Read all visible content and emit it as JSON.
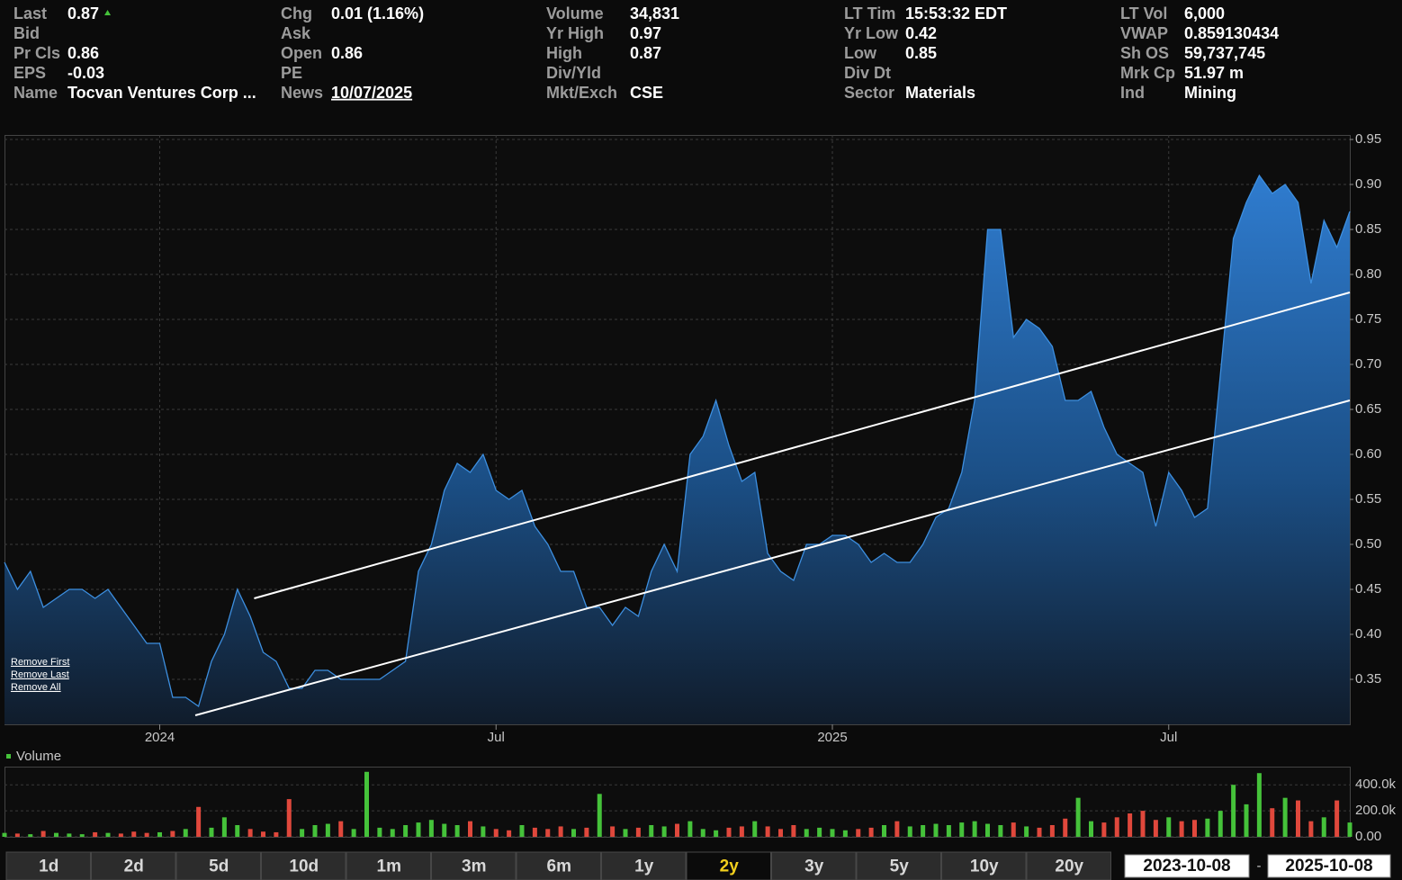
{
  "quote": {
    "columns": [
      [
        {
          "label": "Last",
          "value": "0.87",
          "trend": "up"
        },
        {
          "label": "Bid"
        },
        {
          "label": "Pr Cls",
          "value": "0.86"
        },
        {
          "label": "EPS",
          "value": "-0.03"
        },
        {
          "label": "Name",
          "value": "Tocvan Ventures Corp ..."
        }
      ],
      [
        {
          "label": "Chg",
          "value": "0.01 (1.16%)",
          "color": "#45c23a"
        },
        {
          "label": "Ask"
        },
        {
          "label": "Open",
          "value": "0.86"
        },
        {
          "label": "PE"
        },
        {
          "label": "News",
          "value": "10/07/2025",
          "underline": true
        }
      ],
      [
        {
          "label": "Volume",
          "value": "34,831"
        },
        {
          "label": "Yr High",
          "value": "0.97"
        },
        {
          "label": "High",
          "value": "0.87"
        },
        {
          "label": "Div/Yld"
        },
        {
          "label": "Mkt/Exch",
          "value": "CSE"
        }
      ],
      [
        {
          "label": "LT Tim",
          "value": "15:53:32 EDT"
        },
        {
          "label": "Yr Low",
          "value": "0.42"
        },
        {
          "label": "Low",
          "value": "0.85"
        },
        {
          "label": "Div Dt"
        },
        {
          "label": "Sector",
          "value": "Materials"
        }
      ],
      [
        {
          "label": "LT Vol",
          "value": "6,000"
        },
        {
          "label": "VWAP",
          "value": "0.859130434"
        },
        {
          "label": "Sh OS",
          "value": "59,737,745"
        },
        {
          "label": "Mrk Cp",
          "value": "51.97 m"
        },
        {
          "label": "Ind",
          "value": "Mining"
        }
      ]
    ]
  },
  "chart_data": [
    {
      "type": "area",
      "color": "#3d8fe0",
      "categories": [
        null,
        null,
        null,
        null,
        null,
        null,
        null,
        null,
        null,
        null,
        null,
        null,
        "2024",
        null,
        null,
        null,
        null,
        null,
        null,
        null,
        null,
        null,
        null,
        null,
        null,
        null,
        null,
        null,
        null,
        null,
        null,
        null,
        null,
        null,
        null,
        null,
        null,
        null,
        "Jul",
        null,
        null,
        null,
        null,
        null,
        null,
        null,
        null,
        null,
        null,
        null,
        null,
        null,
        null,
        null,
        null,
        null,
        null,
        null,
        null,
        null,
        null,
        null,
        null,
        null,
        "2025",
        null,
        null,
        null,
        null,
        null,
        null,
        null,
        null,
        null,
        null,
        null,
        null,
        null,
        null,
        null,
        null,
        null,
        null,
        null,
        null,
        null,
        null,
        null,
        null,
        null,
        "Jul",
        null,
        null,
        null,
        null,
        null,
        null,
        null,
        null,
        null,
        null,
        null,
        null,
        null,
        null
      ],
      "values": [
        0.48,
        0.45,
        0.47,
        0.43,
        0.44,
        0.45,
        0.45,
        0.44,
        0.45,
        0.43,
        0.41,
        0.39,
        0.39,
        0.33,
        0.33,
        0.32,
        0.37,
        0.4,
        0.45,
        0.42,
        0.38,
        0.37,
        0.34,
        0.34,
        0.36,
        0.36,
        0.35,
        0.35,
        0.35,
        0.35,
        0.36,
        0.37,
        0.47,
        0.5,
        0.56,
        0.59,
        0.58,
        0.6,
        0.56,
        0.55,
        0.56,
        0.52,
        0.5,
        0.47,
        0.47,
        0.43,
        0.43,
        0.41,
        0.43,
        0.42,
        0.47,
        0.5,
        0.47,
        0.6,
        0.62,
        0.66,
        0.61,
        0.57,
        0.58,
        0.49,
        0.47,
        0.46,
        0.5,
        0.5,
        0.51,
        0.51,
        0.5,
        0.48,
        0.49,
        0.48,
        0.48,
        0.5,
        0.53,
        0.54,
        0.58,
        0.66,
        0.85,
        0.85,
        0.73,
        0.75,
        0.74,
        0.72,
        0.66,
        0.66,
        0.67,
        0.63,
        0.6,
        0.59,
        0.58,
        0.52,
        0.58,
        0.56,
        0.53,
        0.54,
        0.69,
        0.84,
        0.88,
        0.91,
        0.89,
        0.9,
        0.88,
        0.79,
        0.86,
        0.83,
        0.87
      ],
      "ylim": [
        0.3,
        0.955
      ],
      "yticks": [
        0.35,
        {
          "value": 0.4,
          "label": "0.40"
        },
        0.45,
        {
          "value": 0.5,
          "label": "0.50"
        },
        0.55,
        {
          "value": 0.6,
          "label": "0.60"
        },
        0.65,
        {
          "value": 0.7,
          "label": "0.70"
        },
        0.75,
        {
          "value": 0.8,
          "label": "0.80"
        },
        0.85,
        {
          "value": 0.9,
          "label": "0.90"
        },
        0.95
      ],
      "grid": true,
      "trend_lines": [
        {
          "color": "#ffffff",
          "start_index": 19.3,
          "end_index": 104,
          "values": [
            0.44,
            0.78
          ]
        },
        {
          "color": "#ffffff",
          "start_index": 14.75,
          "end_index": 104,
          "values": [
            0.31,
            0.66
          ]
        }
      ],
      "annotations": [
        "Remove First",
        "Remove Last",
        "Remove All"
      ]
    },
    {
      "type": "bar",
      "title": "Volume",
      "up_color": "#45c23a",
      "down_color": "#e0483c",
      "values": [
        30000,
        25000,
        20000,
        45000,
        30000,
        25000,
        20000,
        35000,
        30000,
        25000,
        40000,
        30000,
        35000,
        45000,
        60000,
        230000,
        70000,
        150000,
        90000,
        60000,
        40000,
        35000,
        290000,
        60000,
        90000,
        100000,
        120000,
        60000,
        500000,
        70000,
        60000,
        90000,
        110000,
        130000,
        100000,
        90000,
        120000,
        80000,
        60000,
        50000,
        90000,
        70000,
        60000,
        80000,
        60000,
        70000,
        330000,
        80000,
        60000,
        70000,
        90000,
        80000,
        100000,
        120000,
        60000,
        50000,
        70000,
        80000,
        120000,
        80000,
        60000,
        90000,
        60000,
        70000,
        60000,
        50000,
        60000,
        70000,
        90000,
        120000,
        80000,
        90000,
        100000,
        90000,
        110000,
        120000,
        100000,
        90000,
        110000,
        80000,
        70000,
        90000,
        140000,
        300000,
        120000,
        110000,
        150000,
        180000,
        200000,
        130000,
        150000,
        120000,
        130000,
        140000,
        200000,
        400000,
        250000,
        490000,
        220000,
        300000,
        280000,
        120000,
        150000,
        280000,
        110000
      ],
      "ylim": [
        0,
        540000
      ],
      "yticks": [
        {
          "value": 0,
          "label": "0.00"
        },
        {
          "value": 200000,
          "label": "200.0k"
        },
        {
          "value": 400000,
          "label": "400.0k"
        }
      ]
    }
  ],
  "controls": {
    "ranges": [
      {
        "label": "1d"
      },
      {
        "label": "2d"
      },
      {
        "label": "5d"
      },
      {
        "label": "10d"
      },
      {
        "label": "1m"
      },
      {
        "label": "3m"
      },
      {
        "label": "6m"
      },
      {
        "label": "1y"
      },
      {
        "label": "2y",
        "selected": true
      },
      {
        "label": "3y"
      },
      {
        "label": "5y"
      },
      {
        "label": "10y"
      },
      {
        "label": "20y"
      }
    ],
    "start_date": "2023-10-08",
    "separator": "-",
    "end_date": "2025-10-08"
  }
}
